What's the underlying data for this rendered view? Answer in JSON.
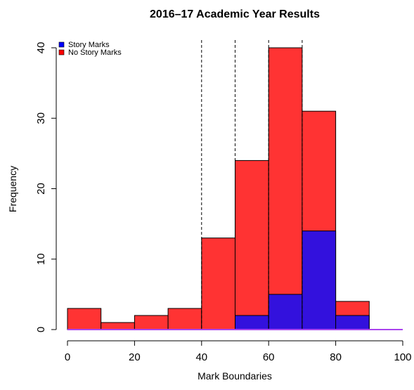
{
  "chart_data": {
    "type": "bar",
    "title": "2016–17 Academic Year Results",
    "xlabel": "Mark Boundaries",
    "ylabel": "Frequency",
    "bins": [
      [
        0,
        10
      ],
      [
        10,
        20
      ],
      [
        20,
        30
      ],
      [
        30,
        40
      ],
      [
        40,
        50
      ],
      [
        50,
        60
      ],
      [
        60,
        70
      ],
      [
        70,
        80
      ],
      [
        80,
        90
      ],
      [
        90,
        100
      ]
    ],
    "series": [
      {
        "name": "No Story Marks",
        "color": "#ff3333",
        "values": [
          3,
          1,
          2,
          3,
          13,
          24,
          40,
          31,
          4,
          0
        ]
      },
      {
        "name": "Story Marks",
        "color": "#3311dd",
        "values": [
          0,
          0,
          0,
          0,
          0,
          2,
          5,
          14,
          2,
          0
        ]
      }
    ],
    "xlim": [
      0,
      100
    ],
    "ylim": [
      0,
      40
    ],
    "xticks": [
      0,
      20,
      40,
      60,
      80,
      100
    ],
    "yticks": [
      0,
      10,
      20,
      30,
      40
    ],
    "reference_lines_x": [
      40,
      50,
      60,
      70
    ],
    "legend": {
      "position": "top-left",
      "entries": [
        {
          "label": "Story Marks",
          "color": "#0000ff"
        },
        {
          "label": "No Story Marks",
          "color": "#ff0000"
        }
      ]
    },
    "baseline_color": "#aa44ee",
    "grid": false
  }
}
